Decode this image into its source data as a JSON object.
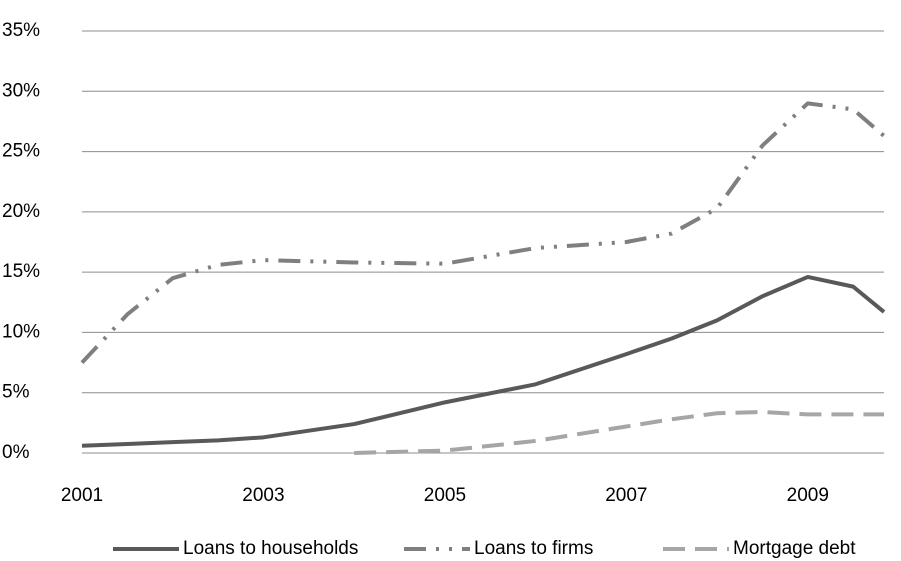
{
  "chart_data": {
    "type": "line",
    "x": [
      2001,
      2001.5,
      2002,
      2002.5,
      2003,
      2004,
      2005,
      2006,
      2007,
      2007.5,
      2008,
      2008.5,
      2009,
      2009.5,
      2009.84
    ],
    "series": [
      {
        "name": "Loans to households",
        "color": "#595959",
        "dash": "solid",
        "values": [
          0.6,
          0.75,
          0.9,
          1.05,
          1.3,
          2.4,
          4.2,
          5.7,
          8.2,
          9.5,
          11.0,
          13.0,
          14.6,
          13.8,
          11.7
        ]
      },
      {
        "name": "Loans to firms",
        "color": "#7f7f7f",
        "dash": "dashdotdot",
        "values": [
          7.5,
          11.5,
          14.5,
          15.6,
          16.0,
          15.8,
          15.7,
          17.0,
          17.5,
          18.2,
          20.3,
          25.5,
          29.0,
          28.5,
          26.3
        ]
      },
      {
        "name": "Mortgage debt",
        "color": "#a6a6a6",
        "dash": "dash",
        "values": [
          null,
          null,
          null,
          null,
          null,
          0.0,
          0.2,
          1.0,
          2.2,
          2.8,
          3.3,
          3.4,
          3.2,
          3.2,
          3.2
        ]
      }
    ],
    "xlim": [
      2001,
      2009.84
    ],
    "xticks": [
      2001,
      2003,
      2005,
      2007,
      2009
    ],
    "ylim": [
      0,
      35
    ],
    "yticks": [
      {
        "value": 0,
        "label": "0%"
      },
      {
        "value": 5,
        "label": "5%"
      },
      {
        "value": 10,
        "label": "10%"
      },
      {
        "value": 15,
        "label": "15%"
      },
      {
        "value": 20,
        "label": "20%"
      },
      {
        "value": 25,
        "label": "25%"
      },
      {
        "value": 30,
        "label": "30%"
      },
      {
        "value": 35,
        "label": "35%"
      }
    ],
    "grid": true,
    "legend": "bottom"
  }
}
